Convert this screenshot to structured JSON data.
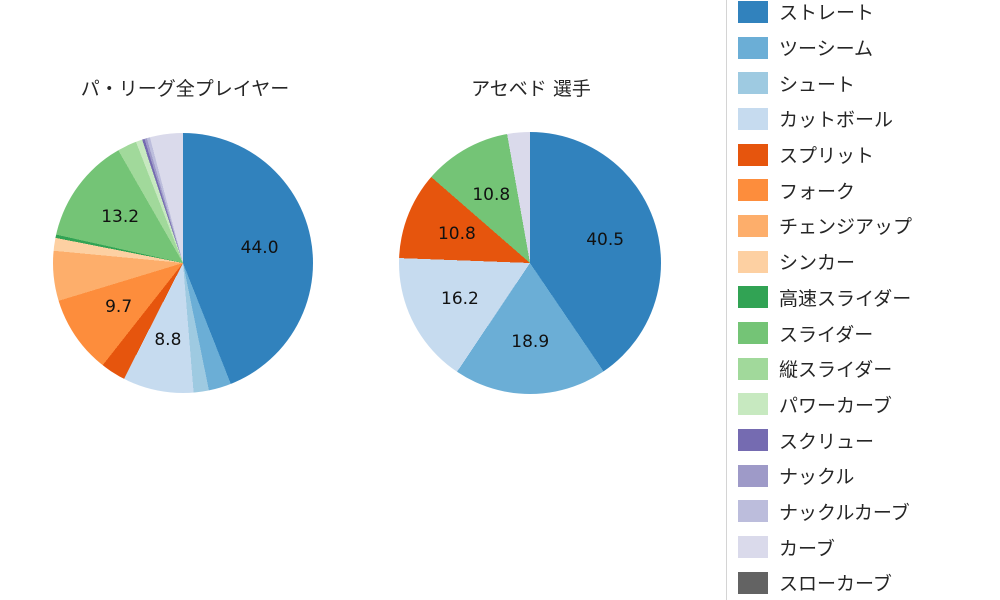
{
  "chart_data": [
    {
      "type": "pie",
      "title": "パ・リーグ全プレイヤー",
      "start_angle_deg": 0,
      "direction": "clockwise",
      "label_distance": 0.6,
      "slices": [
        {
          "name": "ストレート",
          "value": 44.0,
          "label": "44.0",
          "color": "#3182bd"
        },
        {
          "name": "ツーシーム",
          "value": 2.8,
          "label": "",
          "color": "#6baed6"
        },
        {
          "name": "シュート",
          "value": 1.9,
          "label": "",
          "color": "#9ecae1"
        },
        {
          "name": "カットボール",
          "value": 8.8,
          "label": "8.8",
          "color": "#c6dbef"
        },
        {
          "name": "スプリット",
          "value": 3.1,
          "label": "",
          "color": "#e6550d"
        },
        {
          "name": "フォーク",
          "value": 9.7,
          "label": "9.7",
          "color": "#fd8d3c"
        },
        {
          "name": "チェンジアップ",
          "value": 6.2,
          "label": "",
          "color": "#fdae6b"
        },
        {
          "name": "シンカー",
          "value": 1.6,
          "label": "",
          "color": "#fdd0a2"
        },
        {
          "name": "高速スライダー",
          "value": 0.4,
          "label": "",
          "color": "#31a354"
        },
        {
          "name": "スライダー",
          "value": 13.2,
          "label": "13.2",
          "color": "#74c476"
        },
        {
          "name": "縦スライダー",
          "value": 2.4,
          "label": "",
          "color": "#a1d99b"
        },
        {
          "name": "パワーカーブ",
          "value": 0.8,
          "label": "",
          "color": "#c7e9c0"
        },
        {
          "name": "スクリュー",
          "value": 0.3,
          "label": "",
          "color": "#756bb1"
        },
        {
          "name": "ナックル",
          "value": 0.3,
          "label": "",
          "color": "#9e9ac8"
        },
        {
          "name": "ナックルカーブ",
          "value": 0.4,
          "label": "",
          "color": "#bcbddc"
        },
        {
          "name": "カーブ",
          "value": 4.1,
          "label": "",
          "color": "#dadaeb"
        }
      ]
    },
    {
      "type": "pie",
      "title": "アセベド 選手",
      "start_angle_deg": 0,
      "direction": "clockwise",
      "label_distance": 0.6,
      "slices": [
        {
          "name": "ストレート",
          "value": 40.5,
          "label": "40.5",
          "color": "#3182bd"
        },
        {
          "name": "ツーシーム",
          "value": 18.9,
          "label": "18.9",
          "color": "#6baed6"
        },
        {
          "name": "カットボール",
          "value": 16.2,
          "label": "16.2",
          "color": "#c6dbef"
        },
        {
          "name": "スプリット",
          "value": 10.8,
          "label": "10.8",
          "color": "#e6550d"
        },
        {
          "name": "スライダー",
          "value": 10.8,
          "label": "10.8",
          "color": "#74c476"
        },
        {
          "name": "カーブ",
          "value": 2.8,
          "label": "",
          "color": "#dadaeb"
        }
      ]
    }
  ],
  "legend": {
    "position": "right",
    "items": [
      {
        "label": "ストレート",
        "color": "#3182bd"
      },
      {
        "label": "ツーシーム",
        "color": "#6baed6"
      },
      {
        "label": "シュート",
        "color": "#9ecae1"
      },
      {
        "label": "カットボール",
        "color": "#c6dbef"
      },
      {
        "label": "スプリット",
        "color": "#e6550d"
      },
      {
        "label": "フォーク",
        "color": "#fd8d3c"
      },
      {
        "label": "チェンジアップ",
        "color": "#fdae6b"
      },
      {
        "label": "シンカー",
        "color": "#fdd0a2"
      },
      {
        "label": "高速スライダー",
        "color": "#31a354"
      },
      {
        "label": "スライダー",
        "color": "#74c476"
      },
      {
        "label": "縦スライダー",
        "color": "#a1d99b"
      },
      {
        "label": "パワーカーブ",
        "color": "#c7e9c0"
      },
      {
        "label": "スクリュー",
        "color": "#756bb1"
      },
      {
        "label": "ナックル",
        "color": "#9e9ac8"
      },
      {
        "label": "ナックルカーブ",
        "color": "#bcbddc"
      },
      {
        "label": "カーブ",
        "color": "#dadaeb"
      },
      {
        "label": "スローカーブ",
        "color": "#636363"
      }
    ]
  }
}
